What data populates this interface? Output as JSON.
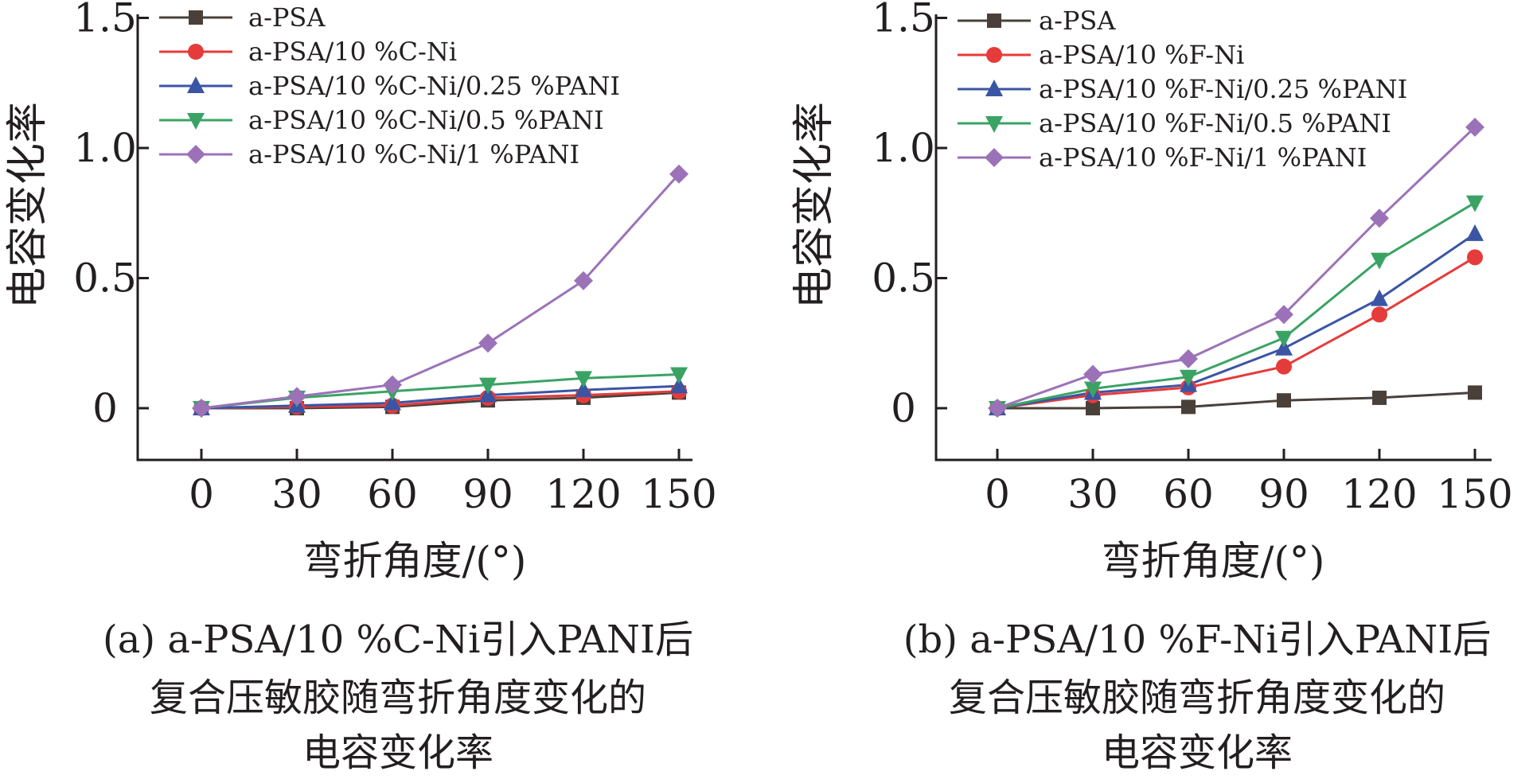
{
  "chart_data": [
    {
      "type": "line",
      "caption_lines": [
        "(a) a-PSA/10 %C-Ni引入PANI后",
        "复合压敏胶随弯折角度变化的",
        "电容变化率"
      ],
      "xlabel": "弯折角度/(°)",
      "ylabel": "电容变化率",
      "x": [
        0,
        30,
        60,
        90,
        120,
        150
      ],
      "x_ticks": [
        "0",
        "30",
        "60",
        "90",
        "120",
        "150"
      ],
      "y_ticks": [
        "0",
        "0.5",
        "1.0",
        "1.5"
      ],
      "ylim": [
        -0.2,
        1.5
      ],
      "grid": false,
      "legend_position": "top-left",
      "series": [
        {
          "name": "a-PSA",
          "values": [
            0,
            0,
            0.005,
            0.03,
            0.04,
            0.06
          ]
        },
        {
          "name": "a-PSA/10 %C-Ni",
          "values": [
            0,
            0.005,
            0.01,
            0.04,
            0.05,
            0.065
          ]
        },
        {
          "name": "a-PSA/10 %C-Ni/0.25 %PANI",
          "values": [
            0,
            0.01,
            0.02,
            0.05,
            0.07,
            0.085
          ]
        },
        {
          "name": "a-PSA/10 %C-Ni/0.5 %PANI",
          "values": [
            0,
            0.04,
            0.065,
            0.09,
            0.115,
            0.13
          ]
        },
        {
          "name": "a-PSA/10 %C-Ni/1 %PANI",
          "values": [
            0,
            0.045,
            0.09,
            0.25,
            0.49,
            0.9
          ]
        }
      ]
    },
    {
      "type": "line",
      "caption_lines": [
        "(b) a-PSA/10 %F-Ni引入PANI后",
        "复合压敏胶随弯折角度变化的",
        "电容变化率"
      ],
      "xlabel": "弯折角度/(°)",
      "ylabel": "电容变化率",
      "x": [
        0,
        30,
        60,
        90,
        120,
        150
      ],
      "x_ticks": [
        "0",
        "30",
        "60",
        "90",
        "120",
        "150"
      ],
      "y_ticks": [
        "0",
        "0.5",
        "1.0",
        "1.5"
      ],
      "ylim": [
        -0.2,
        1.5
      ],
      "grid": false,
      "legend_position": "top-left",
      "series": [
        {
          "name": "a-PSA",
          "values": [
            0,
            0,
            0.005,
            0.03,
            0.04,
            0.06
          ]
        },
        {
          "name": "a-PSA/10 %F-Ni",
          "values": [
            0,
            0.05,
            0.08,
            0.16,
            0.36,
            0.58
          ]
        },
        {
          "name": "a-PSA/10 %F-Ni/0.25 %PANI",
          "values": [
            0,
            0.06,
            0.09,
            0.23,
            0.42,
            0.67
          ]
        },
        {
          "name": "a-PSA/10 %F-Ni/0.5 %PANI",
          "values": [
            0,
            0.075,
            0.12,
            0.27,
            0.57,
            0.79
          ]
        },
        {
          "name": "a-PSA/10 %F-Ni/1 %PANI",
          "values": [
            0,
            0.13,
            0.19,
            0.36,
            0.73,
            1.08
          ]
        }
      ]
    }
  ],
  "style": {
    "series_colors": [
      "#4a403a",
      "#e63b3b",
      "#3a55a4",
      "#3aa364",
      "#9b72b8"
    ],
    "series_markers": [
      "square",
      "circle",
      "triangle-up",
      "triangle-down",
      "diamond"
    ],
    "axis_color": "#231f20"
  }
}
